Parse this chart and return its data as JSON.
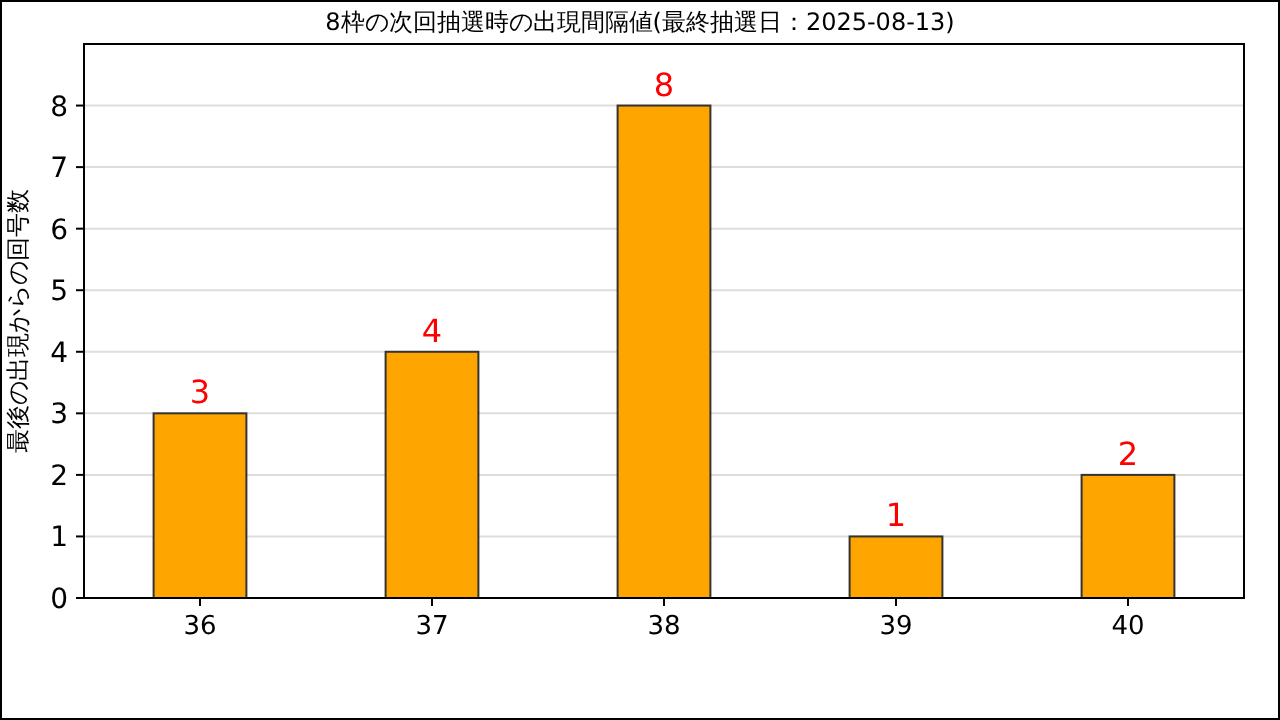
{
  "chart_data": {
    "type": "bar",
    "title": "8枠の次回抽選時の出現間隔値(最終抽選日：2025-08-13)",
    "ylabel": "最後の出現からの回号数",
    "categories": [
      "36",
      "37",
      "38",
      "39",
      "40"
    ],
    "values": [
      3,
      4,
      8,
      1,
      2
    ],
    "color": "#ffa500",
    "ylim": [
      0,
      9
    ],
    "yticks": [
      0,
      1,
      2,
      3,
      4,
      5,
      6,
      7,
      8
    ],
    "grid": "y",
    "data_labels": true
  }
}
